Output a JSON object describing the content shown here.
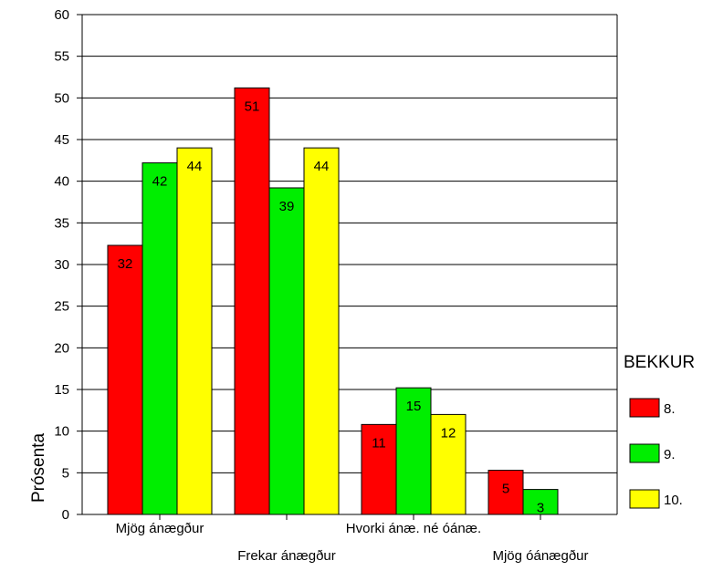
{
  "chart_data": {
    "type": "bar",
    "categories": [
      "Mjög ánægður",
      "Frekar ánægður",
      "Hvorki ánæ. né óánæ.",
      "Mjög óánægður"
    ],
    "series": [
      {
        "name": "8.",
        "color": "#ff0000",
        "values": [
          32,
          51,
          11,
          5
        ]
      },
      {
        "name": "9.",
        "color": "#00ee00",
        "values": [
          42,
          39,
          15,
          3
        ]
      },
      {
        "name": "10.",
        "color": "#ffff00",
        "values": [
          44,
          44,
          12,
          null
        ]
      }
    ],
    "plotted_values": [
      [
        32.3,
        51.2,
        10.8,
        5.3
      ],
      [
        42.2,
        39.2,
        15.2,
        3.0
      ],
      [
        44.0,
        44.0,
        12.0,
        null
      ]
    ],
    "ylabel": "Prósenta",
    "xlabel": "",
    "ylim": [
      0,
      60
    ],
    "yticks": [
      0,
      5,
      10,
      15,
      20,
      25,
      30,
      35,
      40,
      45,
      50,
      55,
      60
    ],
    "grid": true,
    "legend_title": "BEKKUR",
    "legend_position": "right"
  }
}
